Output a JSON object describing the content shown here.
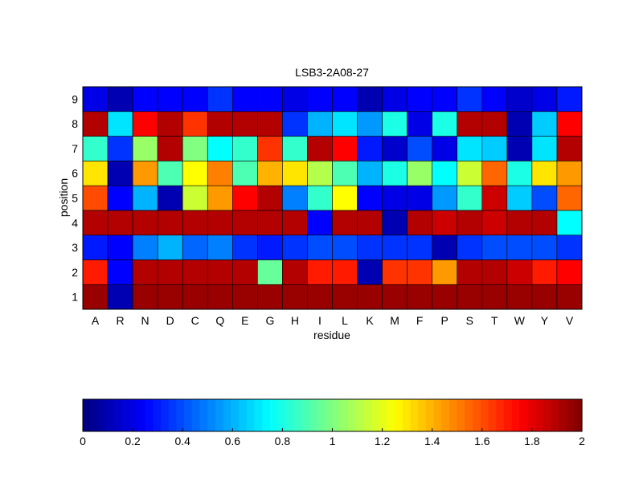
{
  "chart_data": {
    "type": "heatmap",
    "title": "LSB3-2A08-27",
    "xlabel": "residue",
    "ylabel": "position",
    "x_categories": [
      "A",
      "R",
      "N",
      "D",
      "C",
      "Q",
      "E",
      "G",
      "H",
      "I",
      "L",
      "K",
      "M",
      "F",
      "P",
      "S",
      "T",
      "W",
      "Y",
      "V"
    ],
    "y_categories": [
      "1",
      "2",
      "3",
      "4",
      "5",
      "6",
      "7",
      "8",
      "9"
    ],
    "values": [
      [
        1.95,
        0.1,
        1.95,
        1.95,
        1.95,
        1.95,
        1.95,
        1.95,
        1.95,
        1.95,
        1.95,
        1.95,
        1.95,
        1.95,
        1.95,
        1.95,
        1.95,
        1.95,
        1.95,
        1.95
      ],
      [
        1.7,
        0.25,
        1.9,
        1.9,
        1.9,
        1.9,
        1.9,
        0.95,
        1.9,
        1.7,
        1.7,
        0.1,
        1.65,
        1.65,
        1.45,
        1.9,
        1.9,
        1.85,
        1.7,
        1.75
      ],
      [
        0.3,
        0.25,
        0.5,
        0.6,
        0.45,
        0.5,
        0.35,
        0.3,
        0.35,
        0.4,
        0.4,
        0.35,
        0.35,
        0.35,
        0.1,
        0.35,
        0.4,
        0.4,
        0.4,
        0.35
      ],
      [
        1.9,
        1.9,
        1.9,
        1.9,
        1.9,
        1.9,
        1.9,
        1.9,
        1.9,
        0.25,
        1.9,
        1.9,
        0.1,
        1.9,
        1.85,
        1.9,
        1.85,
        1.9,
        1.9,
        0.75
      ],
      [
        1.6,
        0.25,
        0.6,
        0.1,
        1.15,
        1.45,
        1.75,
        1.9,
        0.5,
        0.85,
        1.25,
        0.25,
        0.2,
        0.2,
        0.55,
        0.85,
        1.85,
        0.65,
        0.4,
        1.55
      ],
      [
        1.3,
        0.1,
        1.45,
        0.9,
        1.25,
        1.5,
        0.9,
        1.4,
        1.3,
        1.1,
        0.9,
        0.6,
        0.8,
        1.05,
        0.75,
        1.15,
        1.55,
        0.8,
        1.3,
        1.45
      ],
      [
        0.85,
        0.35,
        1.05,
        1.9,
        1.0,
        0.75,
        0.85,
        1.65,
        0.85,
        1.9,
        1.75,
        0.3,
        0.15,
        0.4,
        0.2,
        0.7,
        0.65,
        0.1,
        0.7,
        1.9
      ],
      [
        1.9,
        0.7,
        1.75,
        1.9,
        1.65,
        1.9,
        1.9,
        1.9,
        0.35,
        0.6,
        0.7,
        0.55,
        0.8,
        0.2,
        0.8,
        1.9,
        1.9,
        0.1,
        0.65,
        1.75
      ],
      [
        0.2,
        0.1,
        0.25,
        0.25,
        0.25,
        0.35,
        0.25,
        0.25,
        0.2,
        0.25,
        0.25,
        0.1,
        0.2,
        0.25,
        0.25,
        0.35,
        0.25,
        0.15,
        0.2,
        0.3
      ]
    ],
    "colormap": "jet",
    "clim": [
      0,
      2
    ],
    "colorbar": {
      "orientation": "horizontal",
      "ticks": [
        0,
        0.2,
        0.4,
        0.6,
        0.8,
        1,
        1.2,
        1.4,
        1.6,
        1.8,
        2
      ],
      "tick_labels": [
        "0",
        "0.2",
        "0.4",
        "0.6",
        "0.8",
        "1",
        "1.2",
        "1.4",
        "1.6",
        "1.8",
        "2"
      ]
    },
    "grid": false
  }
}
